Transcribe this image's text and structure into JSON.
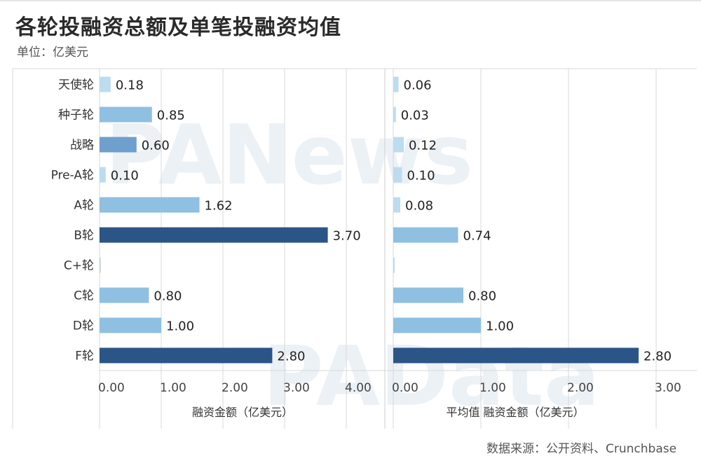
{
  "header": {
    "title": "各轮投融资总额及单笔投融资均值",
    "unit": "单位：亿美元"
  },
  "footer": {
    "source": "数据来源：公开资料、Crunchbase"
  },
  "watermarks": [
    "PANews",
    "PAData"
  ],
  "colors": {
    "light": "#bcdcef",
    "medium": "#8fc0e2",
    "mid": "#6fa0cd",
    "dark": "#2b5587",
    "grid": "#d9d9d9",
    "text": "#333333"
  },
  "chart_data": [
    {
      "type": "bar",
      "orientation": "horizontal",
      "categories": [
        "天使轮",
        "种子轮",
        "战略",
        "Pre-A轮",
        "A轮",
        "B轮",
        "C+轮",
        "C轮",
        "D轮",
        "F轮"
      ],
      "values": [
        0.18,
        0.85,
        0.6,
        0.1,
        1.62,
        3.7,
        null,
        0.8,
        1.0,
        2.8
      ],
      "data_labels": [
        "0.18",
        "0.85",
        "0.60",
        "0.10",
        "1.62",
        "3.70",
        "",
        "0.80",
        "1.00",
        "2.80"
      ],
      "xlabel": "融资金额（亿美元）",
      "xlim": [
        0,
        4
      ],
      "xticks": [
        "0.00",
        "1.00",
        "2.00",
        "3.00",
        "4.00"
      ],
      "grid": true
    },
    {
      "type": "bar",
      "orientation": "horizontal",
      "categories": [
        "天使轮",
        "种子轮",
        "战略",
        "Pre-A轮",
        "A轮",
        "B轮",
        "C+轮",
        "C轮",
        "D轮",
        "F轮"
      ],
      "values": [
        0.06,
        0.03,
        0.12,
        0.1,
        0.08,
        0.74,
        0.0,
        0.8,
        1.0,
        2.8
      ],
      "data_labels": [
        "0.06",
        "0.03",
        "0.12",
        "0.10",
        "0.08",
        "0.74",
        "",
        "0.80",
        "1.00",
        "2.80"
      ],
      "xlabel": "平均值 融资金额（亿美元）",
      "xlim": [
        0,
        3
      ],
      "xticks": [
        "0.00",
        "1.00",
        "2.00",
        "3.00"
      ],
      "grid": true
    }
  ]
}
